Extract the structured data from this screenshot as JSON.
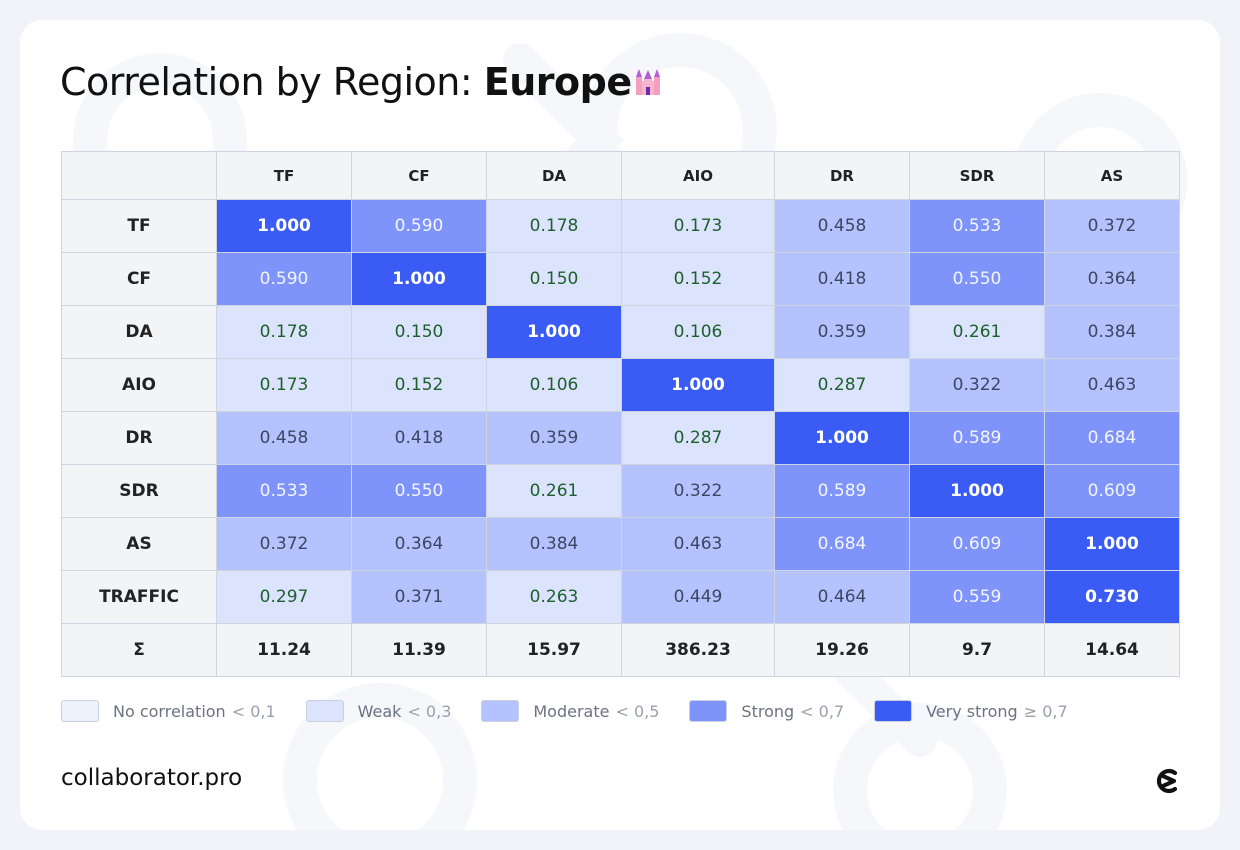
{
  "title": {
    "prefix": "Correlation by Region: ",
    "region": "Europe"
  },
  "colors": {
    "no_correlation": "#eef2fd",
    "weak": "#dbe3fd",
    "moderate": "#b4c2fd",
    "strong": "#7e94fb",
    "very_strong": "#3a5cf5"
  },
  "chart_data": {
    "type": "heatmap",
    "columns": [
      "TF",
      "CF",
      "DA",
      "AIO",
      "DR",
      "SDR",
      "AS"
    ],
    "rows": [
      "TF",
      "CF",
      "DA",
      "AIO",
      "DR",
      "SDR",
      "AS",
      "TRAFFIC"
    ],
    "values": [
      [
        "1.000",
        "0.590",
        "0.178",
        "0.173",
        "0.458",
        "0.533",
        "0.372"
      ],
      [
        "0.590",
        "1.000",
        "0.150",
        "0.152",
        "0.418",
        "0.550",
        "0.364"
      ],
      [
        "0.178",
        "0.150",
        "1.000",
        "0.106",
        "0.359",
        "0.261",
        "0.384"
      ],
      [
        "0.173",
        "0.152",
        "0.106",
        "1.000",
        "0.287",
        "0.322",
        "0.463"
      ],
      [
        "0.458",
        "0.418",
        "0.359",
        "0.287",
        "1.000",
        "0.589",
        "0.684"
      ],
      [
        "0.533",
        "0.550",
        "0.261",
        "0.322",
        "0.589",
        "1.000",
        "0.609"
      ],
      [
        "0.372",
        "0.364",
        "0.384",
        "0.463",
        "0.684",
        "0.609",
        "1.000"
      ],
      [
        "0.297",
        "0.371",
        "0.263",
        "0.449",
        "0.464",
        "0.559",
        "0.730"
      ]
    ],
    "sum_label": "Σ",
    "sums": [
      "11.24",
      "11.39",
      "15.97",
      "386.23",
      "19.26",
      "9.7",
      "14.64"
    ]
  },
  "legend": [
    {
      "key": "no_correlation",
      "label": "No correlation",
      "threshold": "< 0,1"
    },
    {
      "key": "weak",
      "label": "Weak",
      "threshold": "< 0,3"
    },
    {
      "key": "moderate",
      "label": "Moderate",
      "threshold": "< 0,5"
    },
    {
      "key": "strong",
      "label": "Strong",
      "threshold": "< 0,7"
    },
    {
      "key": "very_strong",
      "label": "Very strong",
      "threshold": "≥ 0,7"
    }
  ],
  "footer": {
    "brand": "collaborator.pro"
  },
  "icons": {
    "title_emoji": "castle-icon",
    "logo": "collaborator-logo-icon"
  }
}
